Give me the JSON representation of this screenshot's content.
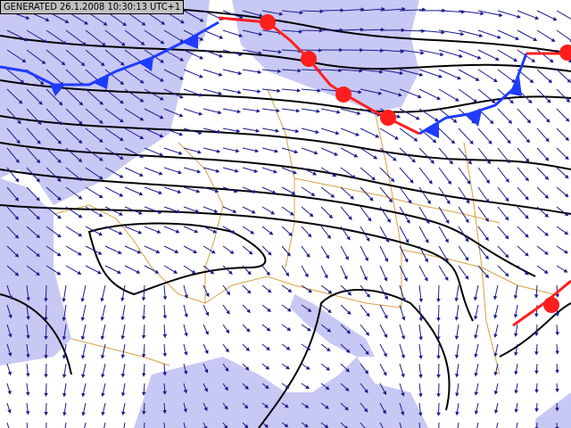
{
  "header": {
    "generated_label": "GENERATED 26.1.2008 10:30:13 UTC+1"
  },
  "colors": {
    "sea": "#c8c8f4",
    "land": "#ffffff",
    "borders": "#d8a040",
    "isobars": "#000000",
    "wind_arrows": "#1c1c8c",
    "cold_front": "#1e3cff",
    "warm_front": "#ff1e1e"
  },
  "layers": [
    "sea",
    "country-borders",
    "isobars",
    "wind-vectors",
    "cold-fronts",
    "warm-fronts"
  ]
}
